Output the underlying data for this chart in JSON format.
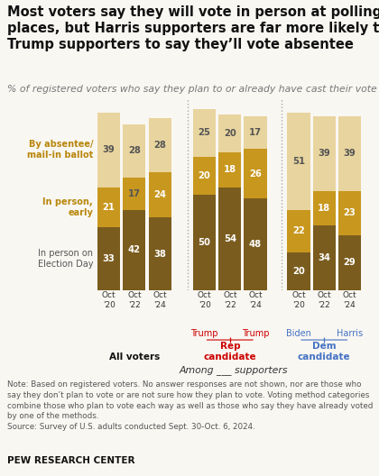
{
  "title": "Most voters say they will vote in person at polling\nplaces, but Harris supporters are far more likely than\nTrump supporters to say they’ll vote absentee",
  "subtitle": "% of registered voters who say they plan to or already have cast their vote ...",
  "groups": [
    {
      "label": "All voters",
      "label_color": "#111111",
      "candidate_labels": null,
      "bars": [
        {
          "election_day": 33,
          "early": 21,
          "absentee": 39
        },
        {
          "election_day": 42,
          "early": 17,
          "absentee": 28
        },
        {
          "election_day": 38,
          "early": 24,
          "absentee": 28
        }
      ]
    },
    {
      "label": "Rep\ncandidate",
      "label_color": "#cc0000",
      "candidate_labels": [
        "Trump",
        "Trump"
      ],
      "candidate_label_color": "#cc0000",
      "candidate_bar_idx": [
        0,
        2
      ],
      "bars": [
        {
          "election_day": 50,
          "early": 20,
          "absentee": 25
        },
        {
          "election_day": 54,
          "early": 18,
          "absentee": 20
        },
        {
          "election_day": 48,
          "early": 26,
          "absentee": 17
        }
      ]
    },
    {
      "label": "Dem\ncandidate",
      "label_color": "#4472c4",
      "candidate_labels": [
        "Biden",
        "Harris"
      ],
      "candidate_label_color": "#4472c4",
      "candidate_bar_idx": [
        0,
        2
      ],
      "bars": [
        {
          "election_day": 20,
          "early": 22,
          "absentee": 51
        },
        {
          "election_day": 34,
          "early": 18,
          "absentee": 39
        },
        {
          "election_day": 29,
          "early": 23,
          "absentee": 39
        }
      ]
    }
  ],
  "year_labels": [
    "Oct\n'20",
    "Oct\n'22",
    "Oct\n'24"
  ],
  "colors": {
    "election_day": "#7a5c1e",
    "early": "#c8971e",
    "absentee": "#e8d49e"
  },
  "ylabels": [
    {
      "text": "By absentee/\nmail-in ballot",
      "color": "#c8971e",
      "mid_val": 72.5
    },
    {
      "text": "In person,\nearly",
      "color": "#c8971e",
      "mid_val": 44.5
    },
    {
      "text": "In person on\nElection Day",
      "color": "#555555",
      "mid_val": 16.5
    }
  ],
  "note": "Note: Based on registered voters. No answer responses are not shown, nor are those who\nsay they don’t plan to vote or are not sure how they plan to vote. Voting method categories\ncombine those who plan to vote each way as well as those who say they have already voted\nby one of the methods.",
  "source": "Source: Survey of U.S. adults conducted Sept. 30-Oct. 6, 2024.",
  "source_label": "PEW RESEARCH CENTER",
  "among_text": "Among ___ supporters",
  "sep_color": "#aaaaaa",
  "background_color": "#f9f7f2",
  "text_num_color_light": "#ffffff",
  "text_num_color_dark": "#555555"
}
